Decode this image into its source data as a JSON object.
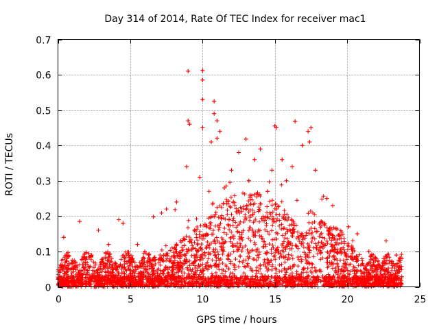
{
  "chart_data": {
    "type": "scatter",
    "title": "Day 314 of 2014, Rate Of TEC Index for receiver mac1",
    "xlabel": "GPS time / hours",
    "ylabel": "ROTI / TECUs",
    "xlim": [
      0,
      25
    ],
    "ylim": [
      0,
      0.7
    ],
    "xticks": [
      0,
      5,
      10,
      15,
      20,
      25
    ],
    "xtick_labels": [
      "0",
      "5",
      "10",
      "15",
      "20",
      "25"
    ],
    "yticks": [
      0,
      0.1,
      0.2,
      0.3,
      0.4,
      0.5,
      0.6,
      0.7
    ],
    "ytick_labels": [
      "0",
      "0.1",
      "0.2",
      "0.3",
      "0.4",
      "0.5",
      "0.6",
      "0.7"
    ],
    "grid": true,
    "marker": "+",
    "marker_color": "#ff0000",
    "series": [
      {
        "name": "ROTI",
        "x_range": [
          0,
          23.8
        ],
        "points": [
          [
            9.0,
            0.61
          ],
          [
            10.0,
            0.612
          ],
          [
            10.0,
            0.585
          ],
          [
            10.0,
            0.53
          ],
          [
            10.8,
            0.525
          ],
          [
            10.8,
            0.49
          ],
          [
            11.0,
            0.47
          ],
          [
            9.0,
            0.47
          ],
          [
            9.1,
            0.46
          ],
          [
            10.0,
            0.45
          ],
          [
            11.2,
            0.44
          ],
          [
            15.0,
            0.455
          ],
          [
            15.1,
            0.45
          ],
          [
            16.4,
            0.468
          ],
          [
            17.5,
            0.45
          ],
          [
            17.3,
            0.44
          ],
          [
            13.0,
            0.418
          ],
          [
            11.0,
            0.42
          ],
          [
            10.6,
            0.41
          ],
          [
            14.0,
            0.39
          ],
          [
            16.9,
            0.4
          ],
          [
            17.4,
            0.41
          ],
          [
            8.9,
            0.34
          ],
          [
            9.8,
            0.31
          ],
          [
            12.5,
            0.38
          ],
          [
            13.6,
            0.36
          ],
          [
            15.5,
            0.36
          ],
          [
            16.2,
            0.34
          ],
          [
            17.8,
            0.33
          ],
          [
            6.6,
            0.198
          ],
          [
            2.8,
            0.16
          ],
          [
            4.2,
            0.19
          ],
          [
            4.5,
            0.18
          ],
          [
            1.5,
            0.185
          ],
          [
            0.4,
            0.14
          ],
          [
            22.7,
            0.13
          ],
          [
            23.4,
            0.09
          ],
          [
            23.6,
            0.075
          ],
          [
            0.1,
            0.045
          ],
          [
            20.1,
            0.17
          ],
          [
            20.7,
            0.15
          ],
          [
            19.0,
            0.23
          ],
          [
            18.6,
            0.25
          ],
          [
            12.0,
            0.33
          ],
          [
            11.5,
            0.28
          ],
          [
            14.5,
            0.27
          ],
          [
            15.8,
            0.3
          ],
          [
            7.5,
            0.22
          ],
          [
            8.2,
            0.24
          ],
          [
            6.0,
            0.1
          ],
          [
            5.5,
            0.12
          ],
          [
            3.5,
            0.12
          ],
          [
            21.5,
            0.1
          ],
          [
            22.0,
            0.08
          ],
          [
            13.2,
            0.3
          ],
          [
            14.8,
            0.33
          ]
        ]
      }
    ]
  }
}
